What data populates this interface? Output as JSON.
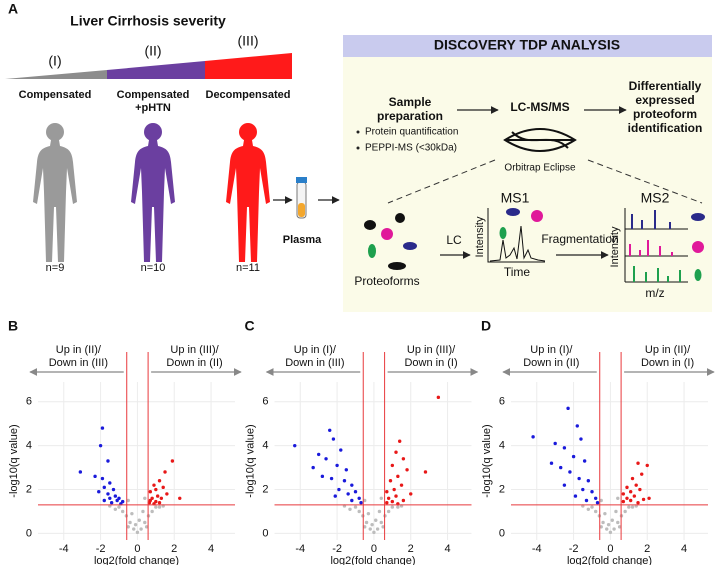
{
  "panel_a": {
    "label": "A",
    "severity_title": "Liver Cirrhosis severity",
    "stages": [
      {
        "numeral": "(I)",
        "group": [
          "Compensated"
        ],
        "n": "n=9"
      },
      {
        "numeral": "(II)",
        "group": [
          "Compensated",
          "+pHTN"
        ],
        "n": "n=10"
      },
      {
        "numeral": "(III)",
        "group": [
          "Decompensated"
        ],
        "n": "n=11"
      }
    ],
    "plasma": "Plasma",
    "discovery": {
      "title": "DISCOVERY TDP ANALYSIS",
      "sample_prep": [
        "Sample",
        "preparation"
      ],
      "bullets": [
        "Protein quantification",
        "PEPPI-MS (<30kDa)"
      ],
      "lcms": "LC-MS/MS",
      "instrument": "Orbitrap Eclipse",
      "result": [
        "Differentially",
        "expressed",
        "proteoform",
        "identification"
      ],
      "proteoforms": "Proteoforms",
      "lc": "LC",
      "ms1": "MS1",
      "ms1_y": "Intensity",
      "ms1_x": "Time",
      "fragmentation": "Fragmentation",
      "ms2": "MS2",
      "ms2_y": "Intensity",
      "ms2_x": "m/z"
    }
  },
  "chart_data": [
    {
      "type": "scatter",
      "label": "B",
      "annotation_left": [
        "Up in (II)/",
        "Down in (III)"
      ],
      "annotation_right": [
        "Up in (III)/",
        "Down in (II)"
      ],
      "x_label": "log2(fold change)",
      "y_label": "-log10(q value)",
      "xlim": [
        -5.4,
        5.3
      ],
      "ylim": [
        -0.3,
        6.9
      ],
      "xticks": [
        -4,
        -2,
        0,
        2,
        4
      ],
      "yticks": [
        0,
        2,
        4,
        6
      ],
      "grid": true,
      "thresholds": {
        "x": [
          -0.58,
          0.58
        ],
        "y": 1.3
      },
      "threshold_color": "#e8393c",
      "series": [
        {
          "color": "#bdbdbd",
          "x": [
            0,
            -0.2,
            0.2,
            -0.4,
            0.4,
            -0.6,
            0.6,
            -0.8,
            0.8,
            -1.0,
            1.0,
            -1.2,
            1.2,
            -0.3,
            0.3,
            -0.5,
            0.4,
            -0.1,
            0.1,
            -1.5,
            1.4,
            0.5,
            -0.5
          ],
          "values": [
            0.05,
            0.2,
            0.2,
            0.5,
            0.5,
            0.8,
            0.8,
            1.0,
            1.0,
            1.2,
            1.2,
            1.1,
            1.2,
            0.9,
            1.0,
            1.5,
            1.6,
            0.4,
            0.6,
            1.25,
            1.25,
            0.3,
            0.3
          ]
        },
        {
          "color": "#1a1adb",
          "x": [
            -1.9,
            -2.0,
            -1.6,
            -3.1,
            -2.3,
            -1.9,
            -1.5,
            -1.8,
            -1.3,
            -2.1,
            -1.6,
            -1.2,
            -1.5,
            -1.0,
            -1.8,
            -1.1,
            -0.8,
            -1.4,
            -0.9
          ],
          "values": [
            4.8,
            4.0,
            3.3,
            2.8,
            2.6,
            2.5,
            2.3,
            2.1,
            2.0,
            1.9,
            1.8,
            1.7,
            1.6,
            1.6,
            1.5,
            1.5,
            1.45,
            1.4,
            1.35
          ]
        },
        {
          "color": "#e81818",
          "x": [
            1.9,
            1.5,
            1.2,
            0.9,
            1.4,
            1.0,
            0.7,
            1.6,
            1.1,
            0.8,
            1.3,
            0.7,
            1.0,
            1.2,
            0.9,
            0.65,
            2.3
          ],
          "values": [
            3.3,
            2.8,
            2.4,
            2.2,
            2.1,
            2.0,
            1.9,
            1.8,
            1.7,
            1.6,
            1.6,
            1.5,
            1.45,
            1.4,
            1.35,
            1.4,
            1.6
          ]
        }
      ]
    },
    {
      "type": "scatter",
      "label": "C",
      "annotation_left": [
        "Up in (I)/",
        "Down in (III)"
      ],
      "annotation_right": [
        "Up in (III)/",
        "Down in (I)"
      ],
      "x_label": "log2(fold change)",
      "y_label": "-log10(q value)",
      "xlim": [
        -5.4,
        5.3
      ],
      "ylim": [
        -0.3,
        6.9
      ],
      "xticks": [
        -4,
        -2,
        0,
        2,
        4
      ],
      "yticks": [
        0,
        2,
        4,
        6
      ],
      "grid": true,
      "thresholds": {
        "x": [
          -0.58,
          0.58
        ],
        "y": 1.3
      },
      "threshold_color": "#e8393c",
      "series": [
        {
          "color": "#bdbdbd",
          "x": [
            0,
            -0.2,
            0.2,
            -0.4,
            0.4,
            -0.6,
            0.6,
            -0.8,
            0.8,
            -1.0,
            1.0,
            -1.3,
            1.3,
            -0.3,
            0.3,
            -0.5,
            0.4,
            -0.1,
            0.1,
            -1.6,
            1.5,
            0.5,
            -0.5
          ],
          "values": [
            0.05,
            0.2,
            0.2,
            0.5,
            0.5,
            0.8,
            0.8,
            1.0,
            1.0,
            1.2,
            1.2,
            1.1,
            1.2,
            0.9,
            1.0,
            1.5,
            1.6,
            0.4,
            0.6,
            1.25,
            1.25,
            0.3,
            0.3
          ]
        },
        {
          "color": "#1a1adb",
          "x": [
            -4.3,
            -2.4,
            -2.2,
            -3.0,
            -2.6,
            -1.8,
            -3.3,
            -2.0,
            -1.5,
            -2.8,
            -2.3,
            -1.6,
            -1.2,
            -1.9,
            -1.0,
            -1.4,
            -2.1,
            -0.8,
            -1.2,
            -0.7
          ],
          "values": [
            4.0,
            4.7,
            4.3,
            3.6,
            3.4,
            3.8,
            3.0,
            3.1,
            2.9,
            2.6,
            2.5,
            2.4,
            2.2,
            2.0,
            1.9,
            1.8,
            1.7,
            1.6,
            1.5,
            1.4
          ]
        },
        {
          "color": "#e81818",
          "x": [
            3.5,
            1.4,
            1.2,
            1.6,
            1.0,
            1.8,
            2.8,
            1.3,
            0.9,
            1.5,
            1.1,
            0.7,
            2.0,
            1.2,
            0.8,
            1.6,
            1.0,
            0.7,
            1.3
          ],
          "values": [
            6.2,
            4.2,
            3.7,
            3.4,
            3.1,
            2.9,
            2.8,
            2.6,
            2.4,
            2.2,
            2.0,
            1.9,
            1.8,
            1.7,
            1.6,
            1.5,
            1.45,
            1.4,
            1.35
          ]
        }
      ]
    },
    {
      "type": "scatter",
      "label": "D",
      "annotation_left": [
        "Up in (I)/",
        "Down in (II)"
      ],
      "annotation_right": [
        "Up in (II)/",
        "Down in (I)"
      ],
      "x_label": "log2(fold change)",
      "y_label": "-log10(q value)",
      "xlim": [
        -5.4,
        5.3
      ],
      "ylim": [
        -0.3,
        6.9
      ],
      "xticks": [
        -4,
        -2,
        0,
        2,
        4
      ],
      "yticks": [
        0,
        2,
        4,
        6
      ],
      "grid": true,
      "thresholds": {
        "x": [
          -0.58,
          0.58
        ],
        "y": 1.3
      },
      "threshold_color": "#e8393c",
      "series": [
        {
          "color": "#bdbdbd",
          "x": [
            0,
            -0.2,
            0.2,
            -0.4,
            0.4,
            -0.6,
            0.6,
            -0.8,
            0.8,
            -1.0,
            1.0,
            -1.2,
            1.2,
            -0.3,
            0.3,
            -0.5,
            0.4,
            -0.1,
            0.1,
            -1.5,
            1.4,
            0.5,
            -0.5
          ],
          "values": [
            0.05,
            0.2,
            0.2,
            0.5,
            0.5,
            0.8,
            0.8,
            1.0,
            1.0,
            1.2,
            1.2,
            1.1,
            1.2,
            0.9,
            1.0,
            1.5,
            1.6,
            0.4,
            0.6,
            1.25,
            1.25,
            0.3,
            0.3
          ]
        },
        {
          "color": "#1a1adb",
          "x": [
            -4.2,
            -2.3,
            -1.8,
            -3.0,
            -2.5,
            -1.6,
            -2.0,
            -3.2,
            -2.7,
            -1.4,
            -2.2,
            -1.7,
            -1.2,
            -2.5,
            -1.5,
            -1.0,
            -1.9,
            -0.8,
            -1.3,
            -0.7
          ],
          "values": [
            4.4,
            5.7,
            4.9,
            4.1,
            3.9,
            4.3,
            3.5,
            3.2,
            3.0,
            3.3,
            2.8,
            2.5,
            2.4,
            2.2,
            2.0,
            1.9,
            1.7,
            1.6,
            1.5,
            1.4
          ]
        },
        {
          "color": "#e81818",
          "x": [
            2.0,
            1.5,
            1.7,
            1.2,
            1.4,
            0.9,
            1.6,
            1.1,
            0.7,
            1.3,
            0.9,
            1.8,
            1.1,
            0.7,
            1.5,
            2.1
          ],
          "values": [
            3.1,
            3.2,
            2.7,
            2.5,
            2.2,
            2.1,
            2.0,
            1.9,
            1.8,
            1.7,
            1.6,
            1.55,
            1.5,
            1.45,
            1.4,
            1.6
          ]
        }
      ]
    }
  ]
}
